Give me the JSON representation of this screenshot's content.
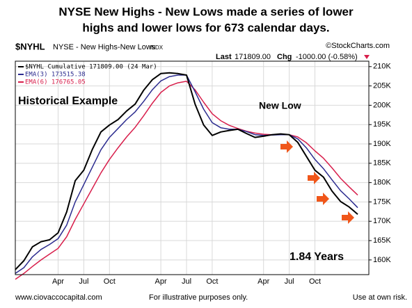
{
  "chart_data": {
    "type": "line",
    "title": [
      "NYSE New Highs - New Lows made a series of lower",
      "highs and lower lows for 673 calendar days."
    ],
    "symbol": "$NYHL",
    "symbol_name": "NYSE - New Highs-New Lows",
    "exchange": "INDX",
    "source": "©StockCharts.com",
    "last_label": "Last",
    "last_value": "171809.00",
    "chg_label": "Chg",
    "chg_value": "-1000.00 (-0.58%)",
    "annotations": [
      "Historical Example",
      "New Low",
      "1.84 Years"
    ],
    "footer": [
      "www.ciovaccocapital.com",
      "For illustrative purposes only.",
      "Use at own risk."
    ],
    "categories": [
      null,
      null,
      null,
      null,
      null,
      "Apr",
      null,
      null,
      "Jul",
      null,
      null,
      "Oct",
      null,
      null,
      null,
      null,
      null,
      "Apr",
      null,
      null,
      "Jul",
      null,
      null,
      "Oct",
      null,
      null,
      null,
      null,
      null,
      "Apr",
      null,
      null,
      "Jul",
      null,
      null,
      "Oct",
      null,
      null,
      null,
      null,
      null
    ],
    "series": [
      {
        "name": "$NYHL Cumulative 171809.00 (24 Mar)",
        "color": "#000000",
        "values": [
          157500,
          159800,
          163400,
          164700,
          165200,
          167000,
          172400,
          180500,
          183200,
          188600,
          193100,
          194900,
          196300,
          198500,
          200300,
          203900,
          206600,
          208200,
          208400,
          208200,
          207800,
          200300,
          194900,
          192200,
          193100,
          193500,
          193800,
          192700,
          191700,
          192000,
          192400,
          192600,
          192400,
          190400,
          186800,
          183200,
          181400,
          177800,
          175100,
          173700,
          171809
        ]
      },
      {
        "name": "EMA(3) 173515.38",
        "color": "#2b2b8f",
        "values": [
          156500,
          158000,
          160800,
          162700,
          164000,
          165500,
          169000,
          175000,
          179500,
          184000,
          188500,
          191700,
          194000,
          196300,
          198300,
          201000,
          204000,
          206300,
          207400,
          207800,
          207800,
          203500,
          199000,
          195500,
          194200,
          193800,
          193800,
          193200,
          192400,
          192200,
          192300,
          192400,
          192400,
          191300,
          189000,
          186000,
          183600,
          180700,
          177900,
          175800,
          173515.38
        ]
      },
      {
        "name": "EMA(6) 176765.05",
        "color": "#d81e4b",
        "values": [
          155000,
          156500,
          158300,
          160000,
          161500,
          163000,
          166000,
          170500,
          174500,
          178500,
          182500,
          186000,
          189000,
          191800,
          194300,
          197300,
          200500,
          203300,
          205000,
          205800,
          206200,
          204000,
          200800,
          197800,
          196000,
          194800,
          194000,
          193300,
          192800,
          192500,
          192400,
          192400,
          192400,
          191800,
          190300,
          188200,
          186300,
          183800,
          181100,
          178900,
          176765.05
        ]
      }
    ],
    "ylim": [
      156200,
      211400
    ],
    "yticks": [
      {
        "value": 160000,
        "label": "160K"
      },
      {
        "value": 165000,
        "label": "165K"
      },
      {
        "value": 170000,
        "label": "170K"
      },
      {
        "value": 175000,
        "label": "175K"
      },
      {
        "value": 180000,
        "label": "180K"
      },
      {
        "value": 185000,
        "label": "185K"
      },
      {
        "value": 190000,
        "label": "190K"
      },
      {
        "value": 195000,
        "label": "195K"
      },
      {
        "value": 200000,
        "label": "200K"
      },
      {
        "value": 205000,
        "label": "205K"
      },
      {
        "value": 210000,
        "label": "210K"
      }
    ],
    "grid": true
  }
}
